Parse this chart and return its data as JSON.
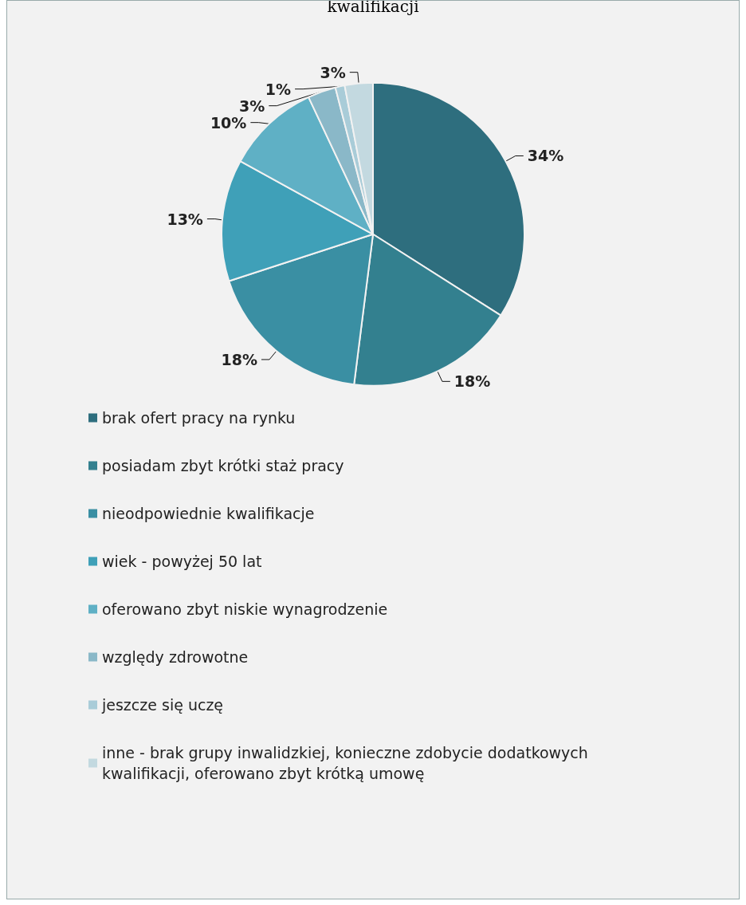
{
  "chart_data": {
    "type": "pie",
    "title": "kwalifikacji",
    "categories": [
      "brak ofert pracy na rynku",
      "posiadam zbyt krótki staż pracy",
      "nieodpowiednie kwalifikacje",
      "wiek - powyżej 50 lat",
      "oferowano zbyt niskie wynagrodzenie",
      "względy zdrowotne",
      "jeszcze się uczę",
      "inne - brak grupy inwalidzkiej, konieczne zdobycie dodatkowych kwalifikacji, oferowano zbyt krótką umowę"
    ],
    "values": [
      34,
      18,
      18,
      13,
      10,
      3,
      1,
      3
    ],
    "value_labels": [
      "34%",
      "18%",
      "18%",
      "13%",
      "10%",
      "3%",
      "1%",
      "3%"
    ],
    "colors": [
      "#2e6e7e",
      "#33808f",
      "#3a8fa3",
      "#3fa0b8",
      "#5fb0c5",
      "#8ab8c8",
      "#a9ccd8",
      "#c3d9e0"
    ],
    "legend": "bottom"
  }
}
